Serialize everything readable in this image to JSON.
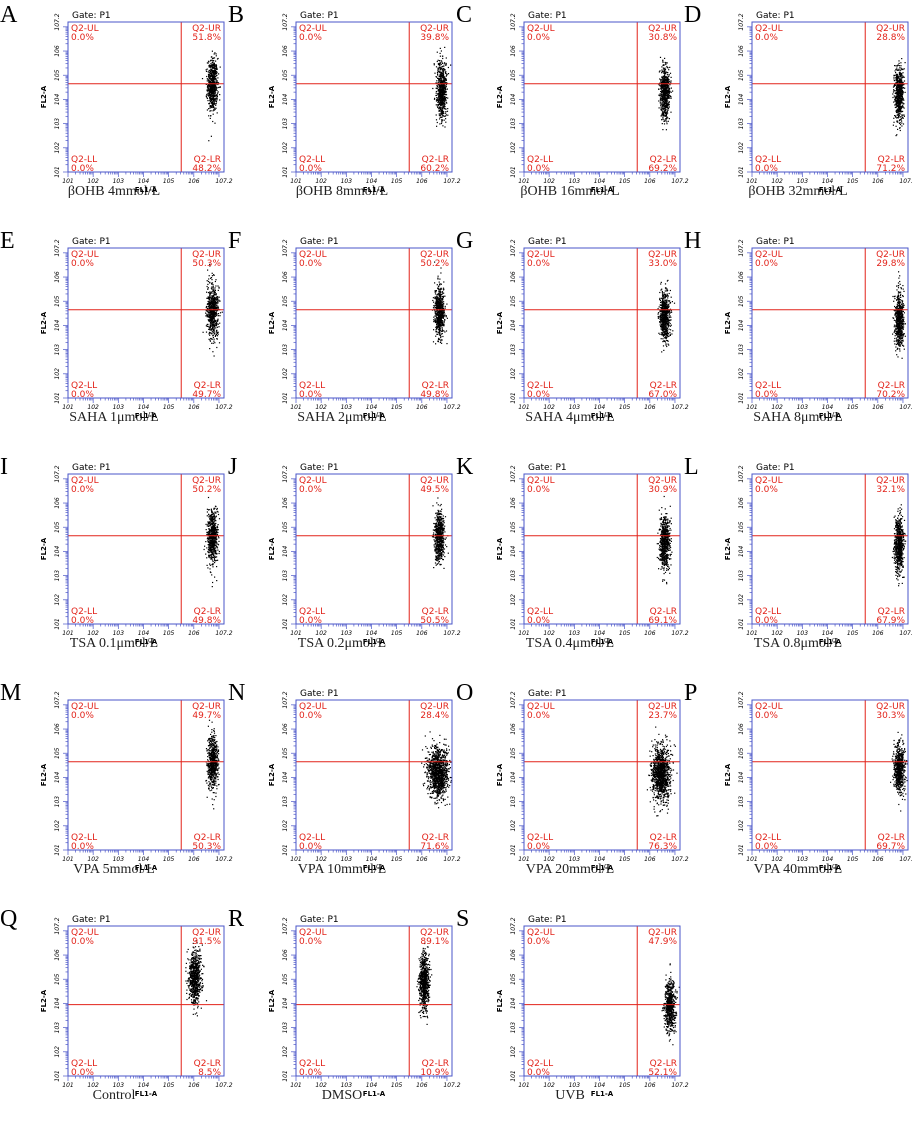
{
  "colors": {
    "frame": "#4a55c8",
    "gate": "#e2231a",
    "quadrant_text": "#e2231a",
    "events": "#000000",
    "axis_text": "#000000"
  },
  "chart_data": [
    {
      "type": "scatter",
      "panel": "A",
      "caption": "βOHB 4mmol/L",
      "gate": "Gate: P1",
      "xlabel": "FL1-A",
      "ylabel": "FL2-A",
      "x_scale": "log",
      "y_scale": "log",
      "xlim": [
        1,
        7.2
      ],
      "ylim": [
        1,
        7.2
      ],
      "gate_x": 5.5,
      "gate_y": 4.65,
      "quadrants": {
        "UL": {
          "label": "Q2-UL",
          "value": "0.0%"
        },
        "UR": {
          "label": "Q2-UR",
          "value": "51.8%"
        },
        "LL": {
          "label": "Q2-LL",
          "value": "0.0%"
        },
        "LR": {
          "label": "Q2-LR",
          "value": "48.2%"
        }
      },
      "cluster": {
        "x": 6.75,
        "y": 4.6,
        "sx": 0.1,
        "sy": 0.55,
        "n": 650
      }
    },
    {
      "type": "scatter",
      "panel": "B",
      "caption": "βOHB 8mmol/L",
      "gate": "Gate: P1",
      "xlabel": "FL1-A",
      "ylabel": "FL2-A",
      "x_scale": "log",
      "y_scale": "log",
      "xlim": [
        1,
        7.2
      ],
      "ylim": [
        1,
        7.2
      ],
      "gate_x": 5.5,
      "gate_y": 4.65,
      "quadrants": {
        "UL": {
          "label": "Q2-UL",
          "value": "0.0%"
        },
        "UR": {
          "label": "Q2-UR",
          "value": "39.8%"
        },
        "LL": {
          "label": "Q2-LL",
          "value": "0.0%"
        },
        "LR": {
          "label": "Q2-LR",
          "value": "60.2%"
        }
      },
      "cluster": {
        "x": 6.8,
        "y": 4.4,
        "sx": 0.1,
        "sy": 0.6,
        "n": 650
      }
    },
    {
      "type": "scatter",
      "panel": "C",
      "caption": "βOHB 16mmol/L",
      "gate": "Gate: P1",
      "xlabel": "FL1-A",
      "ylabel": "FL2-A",
      "x_scale": "log",
      "y_scale": "log",
      "xlim": [
        1,
        7.2
      ],
      "ylim": [
        1,
        7.2
      ],
      "gate_x": 5.5,
      "gate_y": 4.65,
      "quadrants": {
        "UL": {
          "label": "Q2-UL",
          "value": "0.0%"
        },
        "UR": {
          "label": "Q2-UR",
          "value": "30.8%"
        },
        "LL": {
          "label": "Q2-LL",
          "value": "0.0%"
        },
        "LR": {
          "label": "Q2-LR",
          "value": "69.2%"
        }
      },
      "cluster": {
        "x": 6.6,
        "y": 4.3,
        "sx": 0.1,
        "sy": 0.55,
        "n": 650
      }
    },
    {
      "type": "scatter",
      "panel": "D",
      "caption": "βOHB 32mmol/L",
      "gate": "Gate: P1",
      "xlabel": "FL1-A",
      "ylabel": "FL2-A",
      "x_scale": "log",
      "y_scale": "log",
      "xlim": [
        1,
        7.2
      ],
      "ylim": [
        1,
        7.2
      ],
      "gate_x": 5.5,
      "gate_y": 4.65,
      "quadrants": {
        "UL": {
          "label": "Q2-UL",
          "value": "0.0%"
        },
        "UR": {
          "label": "Q2-UR",
          "value": "28.8%"
        },
        "LL": {
          "label": "Q2-LL",
          "value": "0.0%"
        },
        "LR": {
          "label": "Q2-LR",
          "value": "71.2%"
        }
      },
      "cluster": {
        "x": 6.85,
        "y": 4.2,
        "sx": 0.09,
        "sy": 0.55,
        "n": 650
      }
    },
    {
      "type": "scatter",
      "panel": "E",
      "caption": "SAHA 1μmol/L",
      "gate": "Gate: P1",
      "xlabel": "FL1-A",
      "ylabel": "FL2-A",
      "x_scale": "log",
      "y_scale": "log",
      "xlim": [
        1,
        7.2
      ],
      "ylim": [
        1,
        7.2
      ],
      "gate_x": 5.5,
      "gate_y": 4.65,
      "quadrants": {
        "UL": {
          "label": "Q2-UL",
          "value": "0.0%"
        },
        "UR": {
          "label": "Q2-UR",
          "value": "50.3%"
        },
        "LL": {
          "label": "Q2-LL",
          "value": "0.0%"
        },
        "LR": {
          "label": "Q2-LR",
          "value": "49.7%"
        }
      },
      "cluster": {
        "x": 6.75,
        "y": 4.6,
        "sx": 0.12,
        "sy": 0.55,
        "n": 650
      }
    },
    {
      "type": "scatter",
      "panel": "F",
      "caption": "SAHA 2μmol/L",
      "gate": "Gate: P1",
      "xlabel": "FL1-A",
      "ylabel": "FL2-A",
      "x_scale": "log",
      "y_scale": "log",
      "xlim": [
        1,
        7.2
      ],
      "ylim": [
        1,
        7.2
      ],
      "gate_x": 5.5,
      "gate_y": 4.65,
      "quadrants": {
        "UL": {
          "label": "Q2-UL",
          "value": "0.0%"
        },
        "UR": {
          "label": "Q2-UR",
          "value": "50.2%"
        },
        "LL": {
          "label": "Q2-LL",
          "value": "0.0%"
        },
        "LR": {
          "label": "Q2-LR",
          "value": "49.8%"
        }
      },
      "cluster": {
        "x": 6.7,
        "y": 4.6,
        "sx": 0.1,
        "sy": 0.5,
        "n": 650
      }
    },
    {
      "type": "scatter",
      "panel": "G",
      "caption": "SAHA 4μmol/L",
      "gate": "Gate: P1",
      "xlabel": "FL1-A",
      "ylabel": "FL2-A",
      "x_scale": "log",
      "y_scale": "log",
      "xlim": [
        1,
        7.2
      ],
      "ylim": [
        1,
        7.2
      ],
      "gate_x": 5.5,
      "gate_y": 4.65,
      "quadrants": {
        "UL": {
          "label": "Q2-UL",
          "value": "0.0%"
        },
        "UR": {
          "label": "Q2-UR",
          "value": "33.0%"
        },
        "LL": {
          "label": "Q2-LL",
          "value": "0.0%"
        },
        "LR": {
          "label": "Q2-LR",
          "value": "67.0%"
        }
      },
      "cluster": {
        "x": 6.6,
        "y": 4.35,
        "sx": 0.1,
        "sy": 0.5,
        "n": 650
      }
    },
    {
      "type": "scatter",
      "panel": "H",
      "caption": "SAHA 8μmol/L",
      "gate": "Gate: P1",
      "xlabel": "FL1-A",
      "ylabel": "FL2-A",
      "x_scale": "log",
      "y_scale": "log",
      "xlim": [
        1,
        7.2
      ],
      "ylim": [
        1,
        7.2
      ],
      "gate_x": 5.5,
      "gate_y": 4.65,
      "quadrants": {
        "UL": {
          "label": "Q2-UL",
          "value": "0.0%"
        },
        "UR": {
          "label": "Q2-UR",
          "value": "29.8%"
        },
        "LL": {
          "label": "Q2-LL",
          "value": "0.0%"
        },
        "LR": {
          "label": "Q2-LR",
          "value": "70.2%"
        }
      },
      "cluster": {
        "x": 6.85,
        "y": 4.2,
        "sx": 0.09,
        "sy": 0.55,
        "n": 650
      }
    },
    {
      "type": "scatter",
      "panel": "I",
      "caption": "TSA 0.1μmol/L",
      "gate": "Gate: P1",
      "xlabel": "FL1-A",
      "ylabel": "FL2-A",
      "x_scale": "log",
      "y_scale": "log",
      "xlim": [
        1,
        7.2
      ],
      "ylim": [
        1,
        7.2
      ],
      "gate_x": 5.5,
      "gate_y": 4.65,
      "quadrants": {
        "UL": {
          "label": "Q2-UL",
          "value": "0.0%"
        },
        "UR": {
          "label": "Q2-UR",
          "value": "50.2%"
        },
        "LL": {
          "label": "Q2-LL",
          "value": "0.0%"
        },
        "LR": {
          "label": "Q2-LR",
          "value": "49.8%"
        }
      },
      "cluster": {
        "x": 6.75,
        "y": 4.6,
        "sx": 0.1,
        "sy": 0.55,
        "n": 650
      }
    },
    {
      "type": "scatter",
      "panel": "J",
      "caption": "TSA 0.2μmol/L",
      "gate": "Gate: P1",
      "xlabel": "FL1-A",
      "ylabel": "FL2-A",
      "x_scale": "log",
      "y_scale": "log",
      "xlim": [
        1,
        7.2
      ],
      "ylim": [
        1,
        7.2
      ],
      "gate_x": 5.5,
      "gate_y": 4.65,
      "quadrants": {
        "UL": {
          "label": "Q2-UL",
          "value": "0.0%"
        },
        "UR": {
          "label": "Q2-UR",
          "value": "49.5%"
        },
        "LL": {
          "label": "Q2-LL",
          "value": "0.0%"
        },
        "LR": {
          "label": "Q2-LR",
          "value": "50.5%"
        }
      },
      "cluster": {
        "x": 6.7,
        "y": 4.6,
        "sx": 0.1,
        "sy": 0.5,
        "n": 650
      }
    },
    {
      "type": "scatter",
      "panel": "K",
      "caption": "TSA 0.4μmol/L",
      "gate": "Gate: P1",
      "xlabel": "FL1-A",
      "ylabel": "FL2-A",
      "x_scale": "log",
      "y_scale": "log",
      "xlim": [
        1,
        7.2
      ],
      "ylim": [
        1,
        7.2
      ],
      "gate_x": 5.5,
      "gate_y": 4.65,
      "quadrants": {
        "UL": {
          "label": "Q2-UL",
          "value": "0.0%"
        },
        "UR": {
          "label": "Q2-UR",
          "value": "30.9%"
        },
        "LL": {
          "label": "Q2-LL",
          "value": "0.0%"
        },
        "LR": {
          "label": "Q2-LR",
          "value": "69.1%"
        }
      },
      "cluster": {
        "x": 6.6,
        "y": 4.35,
        "sx": 0.1,
        "sy": 0.55,
        "n": 650
      }
    },
    {
      "type": "scatter",
      "panel": "L",
      "caption": "TSA 0.8μmol/L",
      "gate": "Gate: P1",
      "xlabel": "FL1-A",
      "ylabel": "FL2-A",
      "x_scale": "log",
      "y_scale": "log",
      "xlim": [
        1,
        7.2
      ],
      "ylim": [
        1,
        7.2
      ],
      "gate_x": 5.5,
      "gate_y": 4.65,
      "quadrants": {
        "UL": {
          "label": "Q2-UL",
          "value": "0.0%"
        },
        "UR": {
          "label": "Q2-UR",
          "value": "32.1%"
        },
        "LL": {
          "label": "Q2-LL",
          "value": "0.0%"
        },
        "LR": {
          "label": "Q2-LR",
          "value": "67.9%"
        }
      },
      "cluster": {
        "x": 6.85,
        "y": 4.3,
        "sx": 0.09,
        "sy": 0.55,
        "n": 650
      }
    },
    {
      "type": "scatter",
      "panel": "M",
      "caption": "VPA 5mmol/L",
      "gate": "",
      "xlabel": "FL1-A",
      "ylabel": "FL2-A",
      "x_scale": "log",
      "y_scale": "log",
      "xlim": [
        1,
        7.2
      ],
      "ylim": [
        1,
        7.2
      ],
      "gate_x": 5.5,
      "gate_y": 4.65,
      "quadrants": {
        "UL": {
          "label": "Q2-UL",
          "value": "0.0%"
        },
        "UR": {
          "label": "Q2-UR",
          "value": "49.7%"
        },
        "LL": {
          "label": "Q2-LL",
          "value": "0.0%"
        },
        "LR": {
          "label": "Q2-LR",
          "value": "50.3%"
        }
      },
      "cluster": {
        "x": 6.75,
        "y": 4.6,
        "sx": 0.1,
        "sy": 0.55,
        "n": 650
      }
    },
    {
      "type": "scatter",
      "panel": "N",
      "caption": "VPA 10mmol/L",
      "gate": "Gate: P1",
      "xlabel": "FL1-A",
      "ylabel": "FL2-A",
      "x_scale": "log",
      "y_scale": "log",
      "xlim": [
        1,
        7.2
      ],
      "ylim": [
        1,
        7.2
      ],
      "gate_x": 5.5,
      "gate_y": 4.65,
      "quadrants": {
        "UL": {
          "label": "Q2-UL",
          "value": "0.0%"
        },
        "UR": {
          "label": "Q2-UR",
          "value": "28.4%"
        },
        "LL": {
          "label": "Q2-LL",
          "value": "0.0%"
        },
        "LR": {
          "label": "Q2-LR",
          "value": "71.6%"
        }
      },
      "cluster": {
        "x": 6.65,
        "y": 4.2,
        "sx": 0.2,
        "sy": 0.5,
        "n": 1100
      }
    },
    {
      "type": "scatter",
      "panel": "O",
      "caption": "VPA 20mmol/L",
      "gate": "Gate: P1",
      "xlabel": "FL1-A",
      "ylabel": "FL2-A",
      "x_scale": "log",
      "y_scale": "log",
      "xlim": [
        1,
        7.2
      ],
      "ylim": [
        1,
        7.2
      ],
      "gate_x": 5.5,
      "gate_y": 4.65,
      "quadrants": {
        "UL": {
          "label": "Q2-UL",
          "value": "0.0%"
        },
        "UR": {
          "label": "Q2-UR",
          "value": "23.7%"
        },
        "LL": {
          "label": "Q2-LL",
          "value": "0.0%"
        },
        "LR": {
          "label": "Q2-LR",
          "value": "76.3%"
        }
      },
      "cluster": {
        "x": 6.45,
        "y": 4.15,
        "sx": 0.18,
        "sy": 0.55,
        "n": 1100
      }
    },
    {
      "type": "scatter",
      "panel": "P",
      "caption": "VPA 40mmol/L",
      "gate": "",
      "xlabel": "FL1-A",
      "ylabel": "FL2-A",
      "x_scale": "log",
      "y_scale": "log",
      "xlim": [
        1,
        7.2
      ],
      "ylim": [
        1,
        7.2
      ],
      "gate_x": 5.5,
      "gate_y": 4.65,
      "quadrants": {
        "UL": {
          "label": "Q2-UL",
          "value": "0.0%"
        },
        "UR": {
          "label": "Q2-UR",
          "value": "30.3%"
        },
        "LL": {
          "label": "Q2-LL",
          "value": "0.0%"
        },
        "LR": {
          "label": "Q2-LR",
          "value": "69.7%"
        }
      },
      "cluster": {
        "x": 6.85,
        "y": 4.35,
        "sx": 0.1,
        "sy": 0.5,
        "n": 650
      }
    },
    {
      "type": "scatter",
      "panel": "Q",
      "caption": "Control",
      "gate": "Gate: P1",
      "xlabel": "FL1-A",
      "ylabel": "FL2-A",
      "x_scale": "log",
      "y_scale": "log",
      "xlim": [
        1,
        7.2
      ],
      "ylim": [
        1,
        7.2
      ],
      "gate_x": 5.5,
      "gate_y": 3.95,
      "quadrants": {
        "UL": {
          "label": "Q2-UL",
          "value": "0.0%"
        },
        "UR": {
          "label": "Q2-UR",
          "value": "91.5%"
        },
        "LL": {
          "label": "Q2-LL",
          "value": "0.0%"
        },
        "LR": {
          "label": "Q2-LR",
          "value": "8.5%"
        }
      },
      "cluster": {
        "x": 6.05,
        "y": 5.05,
        "sx": 0.12,
        "sy": 0.55,
        "n": 700
      }
    },
    {
      "type": "scatter",
      "panel": "R",
      "caption": "DMSO",
      "gate": "Gate: P1",
      "xlabel": "FL1-A",
      "ylabel": "FL2-A",
      "x_scale": "log",
      "y_scale": "log",
      "xlim": [
        1,
        7.2
      ],
      "ylim": [
        1,
        7.2
      ],
      "gate_x": 5.5,
      "gate_y": 3.95,
      "quadrants": {
        "UL": {
          "label": "Q2-UL",
          "value": "0.0%"
        },
        "UR": {
          "label": "Q2-UR",
          "value": "89.1%"
        },
        "LL": {
          "label": "Q2-LL",
          "value": "0.0%"
        },
        "LR": {
          "label": "Q2-LR",
          "value": "10.9%"
        }
      },
      "cluster": {
        "x": 6.1,
        "y": 4.9,
        "sx": 0.1,
        "sy": 0.55,
        "n": 700
      }
    },
    {
      "type": "scatter",
      "panel": "S",
      "caption": "UVB",
      "gate": "Gate: P1",
      "xlabel": "FL1-A",
      "ylabel": "FL2-A",
      "x_scale": "log",
      "y_scale": "log",
      "xlim": [
        1,
        7.2
      ],
      "ylim": [
        1,
        7.2
      ],
      "gate_x": 5.5,
      "gate_y": 3.95,
      "quadrants": {
        "UL": {
          "label": "Q2-UL",
          "value": "0.0%"
        },
        "UR": {
          "label": "Q2-UR",
          "value": "47.9%"
        },
        "LL": {
          "label": "Q2-LL",
          "value": "0.0%"
        },
        "LR": {
          "label": "Q2-LR",
          "value": "52.1%"
        }
      },
      "cluster": {
        "x": 6.8,
        "y": 3.9,
        "sx": 0.1,
        "sy": 0.5,
        "n": 650
      }
    }
  ]
}
